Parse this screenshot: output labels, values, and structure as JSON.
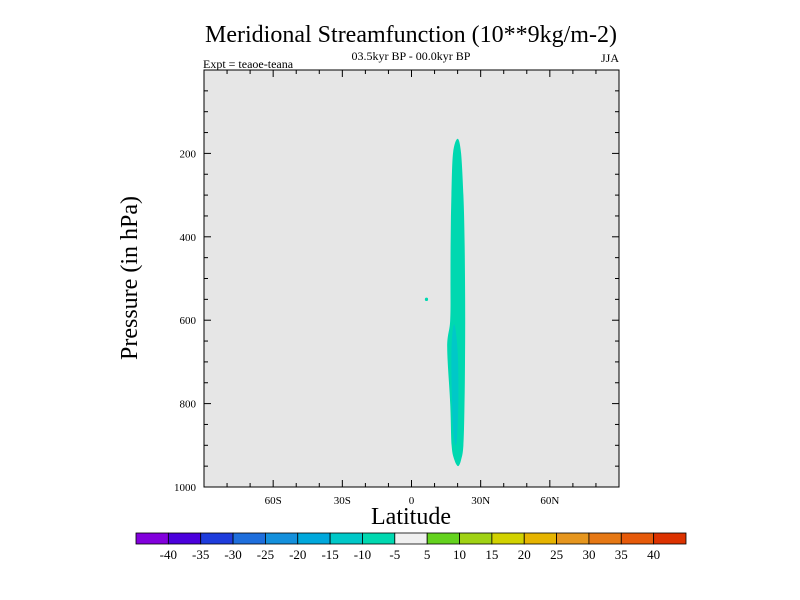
{
  "chart_data": {
    "type": "contour",
    "title": "Meridional Streamfunction (10**9kg/m-2)",
    "subtitle": "03.5kyr BP - 00.0kyr BP",
    "left_label": "Expt = teaoe-teana",
    "right_label": "JJA",
    "xlabel": "Latitude",
    "ylabel": "Pressure (in hPa)",
    "xlim": [
      -90,
      90
    ],
    "ylim": [
      0,
      1000
    ],
    "y_inverted": true,
    "x_ticks": [
      {
        "value": -60,
        "label": "60S"
      },
      {
        "value": -30,
        "label": "30S"
      },
      {
        "value": 0,
        "label": "0"
      },
      {
        "value": 30,
        "label": "30N"
      },
      {
        "value": 60,
        "label": "60N"
      }
    ],
    "y_ticks": [
      {
        "value": 200,
        "label": "200"
      },
      {
        "value": 400,
        "label": "400"
      },
      {
        "value": 600,
        "label": "600"
      },
      {
        "value": 800,
        "label": "800"
      },
      {
        "value": 1000,
        "label": "1000"
      }
    ],
    "background_color": "#e6e6e6",
    "features": [
      {
        "name": "main-cell",
        "level_range": [
          -10,
          -5
        ],
        "color": "#00d8b0",
        "outline": [
          [
            20,
            165
          ],
          [
            21.5,
            200
          ],
          [
            22.5,
            300
          ],
          [
            23,
            400
          ],
          [
            23.2,
            500
          ],
          [
            23.3,
            600
          ],
          [
            23.2,
            700
          ],
          [
            23,
            800
          ],
          [
            22.5,
            900
          ],
          [
            21.5,
            935
          ],
          [
            20.2,
            950
          ],
          [
            18.6,
            935
          ],
          [
            17.4,
            900
          ],
          [
            16.8,
            800
          ],
          [
            15.5,
            665
          ],
          [
            16.8,
            600
          ],
          [
            16.9,
            500
          ],
          [
            17,
            400
          ],
          [
            17.3,
            300
          ],
          [
            18,
            200
          ]
        ]
      },
      {
        "name": "inner-core",
        "level_range": [
          -15,
          -10
        ],
        "color": "#00c8c8",
        "outline": [
          [
            18.5,
            610
          ],
          [
            19.5,
            640
          ],
          [
            20.2,
            700
          ],
          [
            20.3,
            800
          ],
          [
            19.8,
            880
          ],
          [
            19,
            900
          ],
          [
            18.2,
            870
          ],
          [
            17.6,
            800
          ],
          [
            17.3,
            700
          ],
          [
            17.6,
            640
          ]
        ]
      },
      {
        "name": "small-blob",
        "level_range": [
          -10,
          -5
        ],
        "color": "#00d8b0",
        "center": [
          6.5,
          550
        ],
        "radius_deg": 0.7,
        "radius_hpa": 4
      }
    ],
    "colorbar": {
      "labels": [
        "-40",
        "-35",
        "-30",
        "-25",
        "-20",
        "-15",
        "-10",
        "-5",
        "5",
        "10",
        "15",
        "20",
        "25",
        "30",
        "35",
        "40"
      ],
      "colors": [
        "#8200dc",
        "#4b00dc",
        "#1e3cdc",
        "#1e6edc",
        "#1490dc",
        "#00a8dc",
        "#00c8c8",
        "#00d8b0",
        "#f0f0f0",
        "#64d21e",
        "#a0d214",
        "#d2d200",
        "#e6b400",
        "#e6961e",
        "#e67814",
        "#e65a0a",
        "#dc3200"
      ]
    }
  }
}
